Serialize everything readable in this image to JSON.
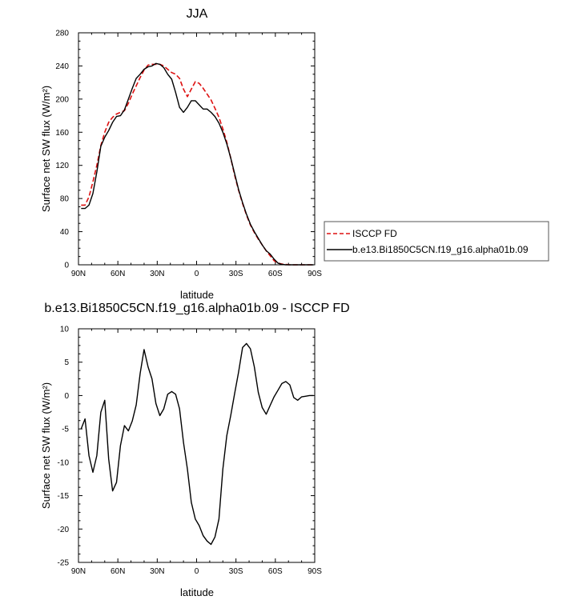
{
  "chart_data": [
    {
      "type": "line",
      "title": "JJA",
      "xlabel": "latitude",
      "ylabel": "Surface net SW flux (W/m²)",
      "xlim": [
        90,
        -90
      ],
      "ylim": [
        0,
        280
      ],
      "xticks": [
        90,
        60,
        30,
        0,
        -30,
        -60,
        -90
      ],
      "xtick_labels": [
        "90N",
        "60N",
        "30N",
        "0",
        "30S",
        "60S",
        "90S"
      ],
      "yticks": [
        0,
        40,
        80,
        120,
        160,
        200,
        240,
        280
      ],
      "ytick_labels": [
        "0",
        "40",
        "80",
        "120",
        "160",
        "200",
        "240",
        "280"
      ],
      "legend_position": "right",
      "series": [
        {
          "name": "ISCCP FD",
          "color": "#dd1111",
          "dash": "dashed",
          "x": [
            88,
            85,
            82,
            79,
            76,
            73,
            70,
            67,
            64,
            61,
            58,
            55,
            52,
            49,
            46,
            43,
            40,
            37,
            34,
            31,
            28,
            25,
            22,
            19,
            16,
            13,
            10,
            7,
            4,
            1,
            -2,
            -5,
            -8,
            -11,
            -14,
            -17,
            -20,
            -23,
            -26,
            -29,
            -32,
            -35,
            -38,
            -41,
            -44,
            -47,
            -50,
            -53,
            -56,
            -59,
            -62,
            -65,
            -68,
            -71,
            -74,
            -77,
            -80,
            -83,
            -86,
            -89
          ],
          "y": [
            72,
            72,
            82,
            100,
            120,
            144,
            160,
            172,
            178,
            182,
            184,
            186,
            195,
            206,
            216,
            226,
            235,
            241,
            242,
            242,
            242,
            240,
            236,
            232,
            230,
            225,
            212,
            203,
            212,
            221,
            219,
            213,
            206,
            199,
            189,
            178,
            164,
            148,
            129,
            108,
            90,
            74,
            60,
            48,
            39,
            31,
            24,
            17,
            11,
            5,
            2,
            1,
            0.5,
            0,
            0,
            0,
            0,
            0,
            0,
            0
          ]
        },
        {
          "name": "b.e13.Bi1850C5CN.f19_g16.alpha01b.09",
          "color": "#000000",
          "dash": "solid",
          "x": [
            88,
            85,
            82,
            79,
            76,
            73,
            70,
            67,
            64,
            61,
            58,
            55,
            52,
            49,
            46,
            43,
            40,
            37,
            34,
            31,
            28,
            25,
            22,
            19,
            16,
            13,
            10,
            7,
            4,
            1,
            -2,
            -5,
            -8,
            -11,
            -14,
            -17,
            -20,
            -23,
            -26,
            -29,
            -32,
            -35,
            -38,
            -41,
            -44,
            -47,
            -50,
            -53,
            -56,
            -59,
            -62,
            -65,
            -68,
            -71,
            -74,
            -77,
            -80,
            -83,
            -86,
            -89
          ],
          "y": [
            68,
            68,
            72,
            86,
            112,
            143,
            154,
            162,
            172,
            179,
            180,
            187,
            200,
            213,
            225,
            230,
            236,
            239,
            240,
            243,
            242,
            238,
            230,
            224,
            208,
            190,
            184,
            190,
            198,
            198,
            193,
            188,
            188,
            184,
            179,
            171,
            160,
            146,
            129,
            110,
            91,
            75,
            61,
            49,
            40,
            32,
            24,
            17,
            13,
            7,
            2,
            0.5,
            0,
            0,
            0,
            0,
            0,
            0,
            0,
            0
          ]
        }
      ]
    },
    {
      "type": "line",
      "title": "b.e13.Bi1850C5CN.f19_g16.alpha01b.09 - ISCCP FD",
      "xlabel": "latitude",
      "ylabel": "Surface net SW flux (W/m²)",
      "xlim": [
        90,
        -90
      ],
      "ylim": [
        -25,
        10
      ],
      "xticks": [
        90,
        60,
        30,
        0,
        -30,
        -60,
        -90
      ],
      "xtick_labels": [
        "90N",
        "60N",
        "30N",
        "0",
        "30S",
        "60S",
        "90S"
      ],
      "yticks": [
        -25,
        -20,
        -15,
        -10,
        -5,
        0,
        5,
        10
      ],
      "ytick_labels": [
        "-25",
        "-20",
        "-15",
        "-10",
        "-5",
        "0",
        "5",
        "10"
      ],
      "series": [
        {
          "color": "#000000",
          "dash": "solid",
          "x": [
            88,
            85,
            82,
            79,
            76,
            73,
            70,
            67,
            64,
            61,
            58,
            55,
            52,
            49,
            46,
            43,
            40,
            37,
            34,
            31,
            28,
            25,
            22,
            19,
            16,
            13,
            10,
            7,
            4,
            1,
            -2,
            -5,
            -8,
            -11,
            -14,
            -17,
            -20,
            -23,
            -26,
            -29,
            -32,
            -35,
            -38,
            -41,
            -44,
            -47,
            -50,
            -53,
            -56,
            -59,
            -62,
            -65,
            -68,
            -71,
            -74,
            -77,
            -80,
            -83,
            -86,
            -89
          ],
          "y": [
            -5,
            -3.5,
            -9,
            -11.5,
            -9,
            -2.5,
            -0.7,
            -9.5,
            -14.3,
            -13,
            -7.5,
            -4.5,
            -5.3,
            -3.8,
            -1.4,
            3.3,
            6.9,
            4.3,
            2.5,
            -1.2,
            -3,
            -2,
            0.2,
            0.6,
            0.2,
            -2,
            -7,
            -11,
            -16,
            -18.5,
            -19.5,
            -21,
            -21.8,
            -22.3,
            -21.2,
            -18.5,
            -11,
            -6,
            -3,
            0.3,
            3.5,
            7.2,
            7.8,
            7,
            4.3,
            0.5,
            -1.8,
            -2.8,
            -1.5,
            -0.2,
            0.8,
            1.8,
            2.1,
            1.6,
            -0.3,
            -0.7,
            -0.2,
            -0.1,
            0,
            0
          ]
        }
      ]
    }
  ]
}
